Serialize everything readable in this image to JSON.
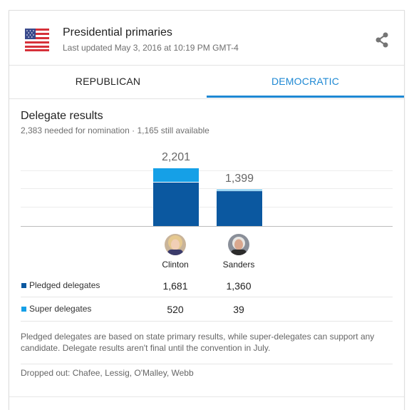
{
  "header": {
    "title": "Presidential primaries",
    "updated": "Last updated May 3, 2016 at 10:19 PM GMT-4",
    "flag_icon": "us-flag-icon",
    "share_icon": "share-icon"
  },
  "tabs": [
    {
      "label": "REPUBLICAN",
      "selected": false
    },
    {
      "label": "DEMOCRATIC",
      "selected": true
    }
  ],
  "results": {
    "title": "Delegate results",
    "subtitle": "2,383 needed for nomination · 1,165 still available"
  },
  "colors": {
    "accent": "#1e88d3",
    "pledged": "#0b58a0",
    "super": "#15a0e7"
  },
  "chart_data": {
    "type": "bar",
    "stacked": true,
    "categories": [
      "Clinton",
      "Sanders"
    ],
    "series": [
      {
        "name": "Pledged delegates",
        "values": [
          1681,
          1360
        ]
      },
      {
        "name": "Super delegates",
        "values": [
          520,
          39
        ]
      }
    ],
    "totals": [
      "2,201",
      "1,399"
    ],
    "grid": true
  },
  "candidates": [
    {
      "name": "Clinton",
      "pledged": "1,681",
      "super": "520",
      "total": "2,201"
    },
    {
      "name": "Sanders",
      "pledged": "1,360",
      "super": "39",
      "total": "1,399"
    }
  ],
  "legend": {
    "pledged_label": "Pledged delegates",
    "super_label": "Super delegates"
  },
  "note": "Pledged delegates are based on state primary results, while super-delegates can support any candidate. Delegate results aren't final until the convention in July.",
  "dropped_out": "Dropped out: Chafee, Lessig, O'Malley, Webb"
}
